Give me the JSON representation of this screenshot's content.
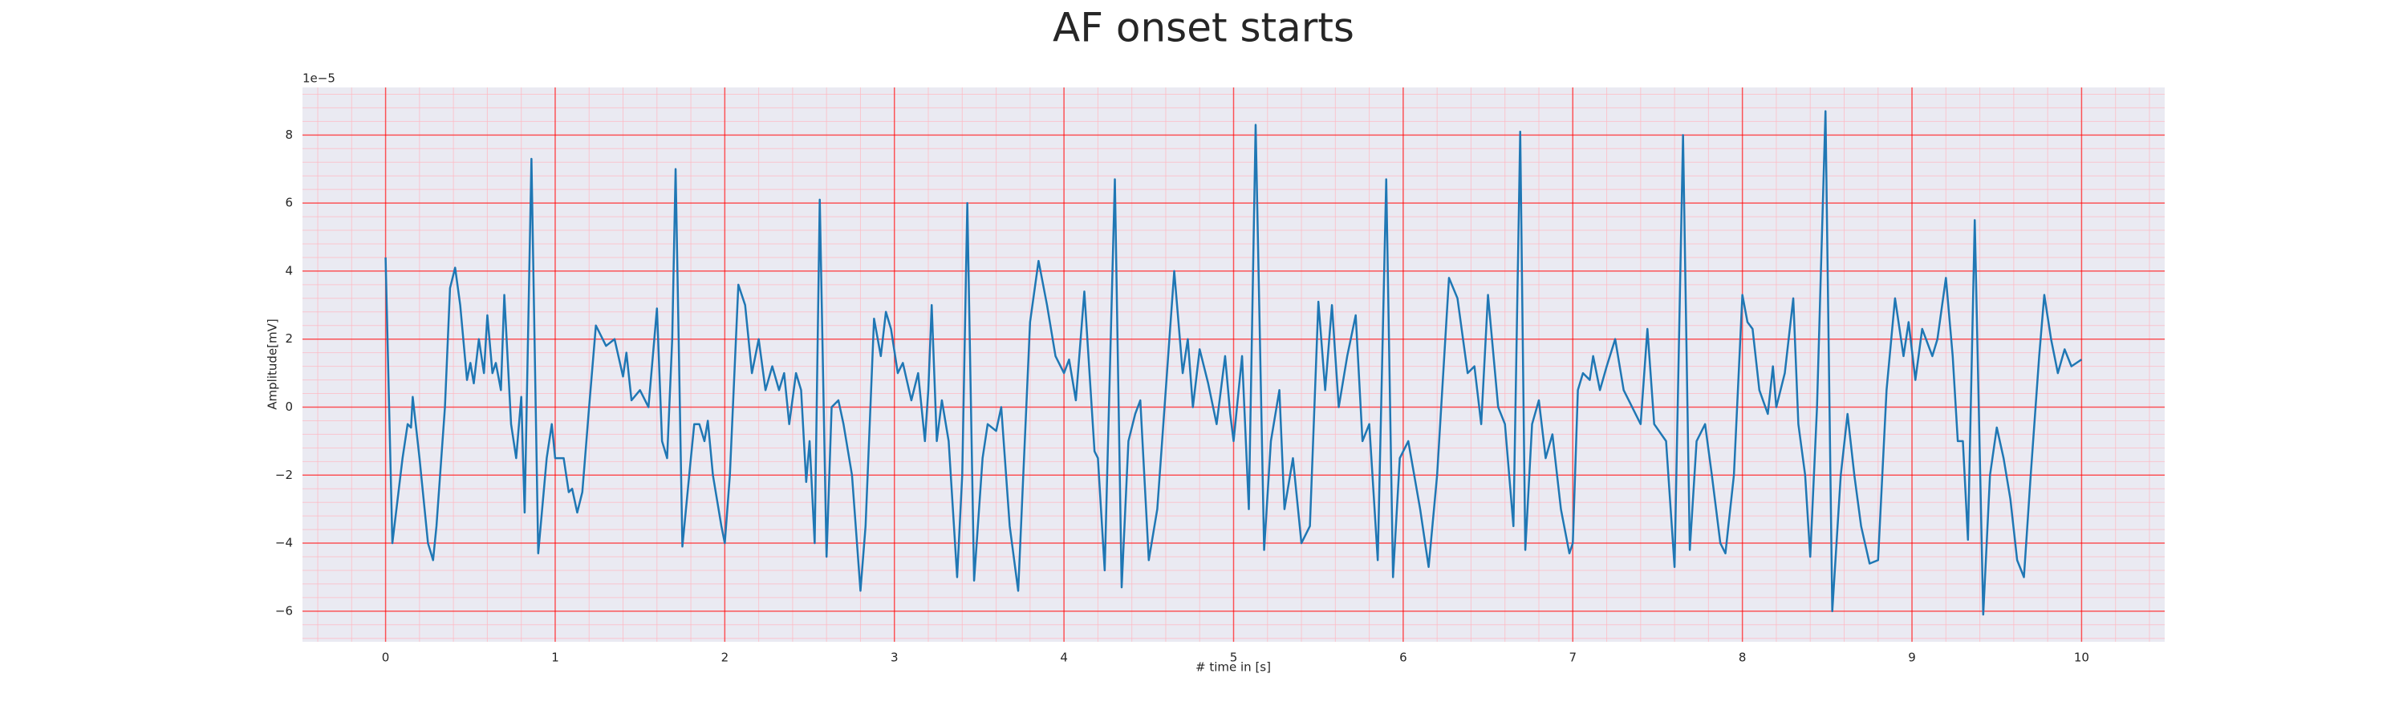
{
  "chart_data": {
    "type": "line",
    "title": "AF onset starts",
    "xlabel": "# time in [s]",
    "ylabel": "Amplitude[mV]",
    "y_offset_label": "1e−5",
    "color": "#1f77b4",
    "grid": true,
    "minor_grid": true,
    "xlim": [
      -0.49,
      10.49
    ],
    "ylim": [
      -6.9,
      9.4
    ],
    "xticks": [
      0,
      1,
      2,
      3,
      4,
      5,
      6,
      7,
      8,
      9,
      10
    ],
    "yticks": [
      {
        "value": -6,
        "label": "−6"
      },
      {
        "value": -4,
        "label": "−4"
      },
      {
        "value": -2,
        "label": "−2"
      },
      0,
      2,
      4,
      6,
      8
    ],
    "x": [
      0.0,
      0.04,
      0.1,
      0.13,
      0.15,
      0.16,
      0.2,
      0.25,
      0.28,
      0.3,
      0.35,
      0.38,
      0.41,
      0.44,
      0.48,
      0.5,
      0.52,
      0.55,
      0.58,
      0.6,
      0.63,
      0.65,
      0.68,
      0.7,
      0.74,
      0.77,
      0.8,
      0.82,
      0.86,
      0.9,
      0.95,
      0.98,
      1.0,
      1.05,
      1.08,
      1.1,
      1.13,
      1.16,
      1.2,
      1.24,
      1.3,
      1.35,
      1.4,
      1.42,
      1.45,
      1.5,
      1.55,
      1.6,
      1.63,
      1.66,
      1.69,
      1.71,
      1.75,
      1.8,
      1.82,
      1.85,
      1.88,
      1.9,
      1.93,
      1.98,
      2.0,
      2.03,
      2.08,
      2.12,
      2.16,
      2.2,
      2.24,
      2.28,
      2.32,
      2.35,
      2.38,
      2.42,
      2.45,
      2.48,
      2.5,
      2.53,
      2.56,
      2.6,
      2.63,
      2.67,
      2.7,
      2.75,
      2.8,
      2.83,
      2.88,
      2.92,
      2.95,
      2.98,
      3.02,
      3.05,
      3.1,
      3.14,
      3.18,
      3.2,
      3.22,
      3.25,
      3.28,
      3.32,
      3.37,
      3.4,
      3.43,
      3.47,
      3.52,
      3.55,
      3.6,
      3.63,
      3.68,
      3.73,
      3.76,
      3.8,
      3.85,
      3.9,
      3.95,
      4.0,
      4.03,
      4.07,
      4.12,
      4.18,
      4.2,
      4.24,
      4.3,
      4.34,
      4.38,
      4.42,
      4.45,
      4.5,
      4.55,
      4.6,
      4.65,
      4.7,
      4.73,
      4.76,
      4.8,
      4.85,
      4.9,
      4.95,
      4.98,
      5.0,
      5.05,
      5.09,
      5.13,
      5.18,
      5.22,
      5.27,
      5.3,
      5.35,
      5.4,
      5.45,
      5.5,
      5.54,
      5.58,
      5.62,
      5.67,
      5.72,
      5.76,
      5.8,
      5.85,
      5.9,
      5.94,
      5.98,
      6.03,
      6.1,
      6.15,
      6.2,
      6.27,
      6.32,
      6.38,
      6.42,
      6.46,
      6.5,
      6.56,
      6.6,
      6.65,
      6.69,
      6.72,
      6.76,
      6.8,
      6.84,
      6.88,
      6.93,
      6.98,
      7.0,
      7.03,
      7.06,
      7.1,
      7.12,
      7.16,
      7.2,
      7.25,
      7.3,
      7.35,
      7.4,
      7.44,
      7.48,
      7.55,
      7.6,
      7.65,
      7.69,
      7.73,
      7.78,
      7.82,
      7.87,
      7.9,
      7.95,
      8.0,
      8.03,
      8.06,
      8.1,
      8.15,
      8.18,
      8.2,
      8.25,
      8.3,
      8.33,
      8.37,
      8.4,
      8.44,
      8.49,
      8.53,
      8.58,
      8.62,
      8.66,
      8.7,
      8.75,
      8.8,
      8.85,
      8.9,
      8.95,
      8.98,
      9.02,
      9.06,
      9.12,
      9.15,
      9.2,
      9.24,
      9.27,
      9.3,
      9.33,
      9.37,
      9.42,
      9.46,
      9.5,
      9.54,
      9.58,
      9.62,
      9.66,
      9.7,
      9.75,
      9.78,
      9.82,
      9.86,
      9.9,
      9.94,
      10.0
    ],
    "values": [
      4.4,
      -4.0,
      -1.5,
      -0.5,
      -0.6,
      0.3,
      -1.5,
      -4.0,
      -4.5,
      -3.5,
      0,
      3.5,
      4.1,
      3.0,
      0.8,
      1.3,
      0.7,
      2.0,
      1.0,
      2.7,
      1.0,
      1.3,
      0.5,
      3.3,
      -0.5,
      -1.5,
      0.3,
      -3.1,
      7.3,
      -4.3,
      -1.5,
      -0.5,
      -1.5,
      -1.5,
      -2.5,
      -2.4,
      -3.1,
      -2.5,
      0,
      2.4,
      1.8,
      2.0,
      0.9,
      1.6,
      0.2,
      0.5,
      0.0,
      2.9,
      -1.0,
      -1.5,
      2.0,
      7.0,
      -4.1,
      -1.5,
      -0.5,
      -0.5,
      -1.0,
      -0.4,
      -2.0,
      -3.5,
      -4.0,
      -2.0,
      3.6,
      3.0,
      1.0,
      2.0,
      0.5,
      1.2,
      0.5,
      1.0,
      -0.5,
      1.0,
      0.5,
      -2.2,
      -1.0,
      -4.0,
      6.1,
      -4.4,
      0.0,
      0.2,
      -0.5,
      -2.0,
      -5.4,
      -3.5,
      2.6,
      1.5,
      2.8,
      2.3,
      1.0,
      1.3,
      0.2,
      1.0,
      -1.0,
      0.5,
      3.0,
      -1.0,
      0.2,
      -1.0,
      -5.0,
      -2.0,
      6.0,
      -5.1,
      -1.5,
      -0.5,
      -0.7,
      0.0,
      -3.5,
      -5.4,
      -2.0,
      2.5,
      4.3,
      3.0,
      1.5,
      1.0,
      1.4,
      0.2,
      3.4,
      -1.3,
      -1.5,
      -4.8,
      6.7,
      -5.3,
      -1.0,
      -0.2,
      0.2,
      -4.5,
      -3.0,
      0.5,
      4.0,
      1.0,
      2.0,
      0.0,
      1.7,
      0.7,
      -0.5,
      1.5,
      -0.2,
      -1.0,
      1.5,
      -3.0,
      8.3,
      -4.2,
      -1.0,
      0.5,
      -3.0,
      -1.5,
      -4.0,
      -3.5,
      3.1,
      0.5,
      3.0,
      0.0,
      1.5,
      2.7,
      -1.0,
      -0.5,
      -4.5,
      6.7,
      -5.0,
      -1.5,
      -1.0,
      -3.0,
      -4.7,
      -2.0,
      3.8,
      3.2,
      1.0,
      1.2,
      -0.5,
      3.3,
      0.0,
      -0.5,
      -3.5,
      8.1,
      -4.2,
      -0.5,
      0.2,
      -1.5,
      -0.8,
      -3.0,
      -4.3,
      -4.0,
      0.5,
      1.0,
      0.8,
      1.5,
      0.5,
      1.2,
      2.0,
      0.5,
      0.0,
      -0.5,
      2.3,
      -0.5,
      -1.0,
      -4.7,
      8.0,
      -4.2,
      -1.0,
      -0.5,
      -2.0,
      -4.0,
      -4.3,
      -2.0,
      3.3,
      2.5,
      2.3,
      0.5,
      -0.2,
      1.2,
      0.0,
      1.0,
      3.2,
      -0.5,
      -2.0,
      -4.4,
      0.0,
      8.7,
      -6.0,
      -2.0,
      -0.2,
      -2.0,
      -3.5,
      -4.6,
      -4.5,
      0.5,
      3.2,
      1.5,
      2.5,
      0.8,
      2.3,
      1.5,
      2.0,
      3.8,
      1.5,
      -1.0,
      -1.0,
      -3.9,
      5.5,
      -6.1,
      -2.0,
      -0.6,
      -1.5,
      -2.7,
      -4.5,
      -5.0,
      -2.0,
      1.5,
      3.3,
      2.0,
      1.0,
      1.7,
      1.2,
      1.4
    ]
  }
}
